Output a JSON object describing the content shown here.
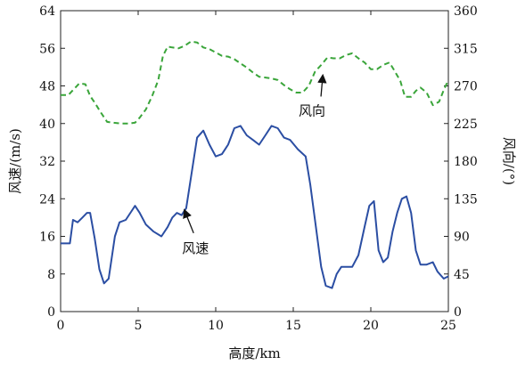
{
  "chart_data": {
    "type": "line",
    "xlabel": "高度/km",
    "ylabel_left": "风速/(m/s)",
    "ylabel_right": "风向/(°)",
    "xlim": [
      0,
      25
    ],
    "ylim_left": [
      0,
      64
    ],
    "ylim_right": [
      0,
      360
    ],
    "x_ticks": [
      0,
      5,
      10,
      15,
      20,
      25
    ],
    "y_ticks_left": [
      0,
      8,
      16,
      24,
      32,
      40,
      48,
      56,
      64
    ],
    "y_ticks_right": [
      0,
      45,
      90,
      135,
      180,
      225,
      270,
      315,
      360
    ],
    "grid": false,
    "series": [
      {
        "name": "风速",
        "axis": "left",
        "color": "#2b4ea3",
        "line_style": "solid",
        "x": [
          0,
          0.6,
          0.8,
          1.1,
          1.4,
          1.7,
          1.9,
          2.2,
          2.5,
          2.8,
          3.1,
          3.5,
          3.8,
          4.2,
          4.6,
          4.8,
          5.1,
          5.5,
          6.0,
          6.5,
          6.9,
          7.2,
          7.5,
          7.8,
          8.1,
          8.4,
          8.8,
          9.2,
          9.6,
          10.0,
          10.4,
          10.8,
          11.2,
          11.6,
          12.0,
          12.4,
          12.8,
          13.2,
          13.6,
          14.0,
          14.4,
          14.8,
          15.3,
          15.8,
          16.1,
          16.5,
          16.8,
          17.1,
          17.5,
          17.8,
          18.1,
          18.4,
          18.8,
          19.2,
          19.6,
          19.9,
          20.2,
          20.5,
          20.8,
          21.1,
          21.4,
          21.7,
          22.0,
          22.3,
          22.6,
          22.9,
          23.2,
          23.6,
          24.0,
          24.3,
          24.7,
          25.0
        ],
        "values": [
          14.5,
          14.5,
          19.5,
          19.0,
          20.0,
          21.0,
          21.0,
          15.5,
          9.0,
          6.0,
          7.0,
          16.0,
          19.0,
          19.5,
          21.5,
          22.5,
          21.0,
          18.5,
          17.0,
          16.0,
          18.0,
          20.0,
          21.0,
          20.5,
          22.0,
          28.5,
          37.0,
          38.5,
          35.5,
          33.0,
          33.5,
          35.5,
          39.0,
          39.5,
          37.5,
          36.5,
          35.5,
          37.5,
          39.5,
          39.0,
          37.0,
          36.5,
          34.5,
          33.0,
          27.0,
          17.0,
          9.5,
          5.5,
          5.0,
          8.0,
          9.5,
          9.5,
          9.5,
          12.0,
          18.0,
          22.5,
          23.5,
          13.0,
          10.5,
          11.5,
          17.0,
          21.0,
          24.0,
          24.5,
          21.0,
          13.0,
          10.0,
          10.0,
          10.5,
          8.5,
          7.0,
          7.5
        ]
      },
      {
        "name": "风向",
        "axis": "right",
        "color": "#3aa53a",
        "line_style": "dashed",
        "x": [
          0,
          0.5,
          0.8,
          1.2,
          1.6,
          1.9,
          2.2,
          2.6,
          3.0,
          3.4,
          3.9,
          4.4,
          4.8,
          5.1,
          5.5,
          5.9,
          6.3,
          6.6,
          6.9,
          7.2,
          7.6,
          8.0,
          8.4,
          8.8,
          9.2,
          9.6,
          10.0,
          10.4,
          10.8,
          11.2,
          11.6,
          12.0,
          12.4,
          12.8,
          13.2,
          13.6,
          14.0,
          14.4,
          14.8,
          15.2,
          15.6,
          16.0,
          16.4,
          16.8,
          17.2,
          17.6,
          18.0,
          18.4,
          18.8,
          19.2,
          19.6,
          20.0,
          20.4,
          20.8,
          21.2,
          21.5,
          21.9,
          22.2,
          22.6,
          22.9,
          23.2,
          23.6,
          24.0,
          24.4,
          24.7,
          25.0
        ],
        "values": [
          259,
          259,
          265,
          273,
          272,
          258,
          250,
          238,
          227,
          226,
          225,
          225,
          226,
          232,
          242,
          258,
          277,
          306,
          317,
          316,
          315,
          318,
          323,
          322,
          316,
          314,
          310,
          306,
          305,
          302,
          297,
          292,
          286,
          281,
          280,
          279,
          277,
          271,
          266,
          262,
          262,
          270,
          287,
          295,
          304,
          303,
          303,
          307,
          309,
          303,
          298,
          290,
          290,
          295,
          298,
          289,
          276,
          257,
          257,
          264,
          268,
          262,
          247,
          251,
          265,
          277
        ]
      }
    ],
    "annotations": [
      {
        "text": "风向",
        "arrow_to": [
          16.9,
          285
        ],
        "axis": "right"
      },
      {
        "text": "风速",
        "arrow_to": [
          8.0,
          22.0
        ],
        "axis": "left"
      }
    ]
  }
}
